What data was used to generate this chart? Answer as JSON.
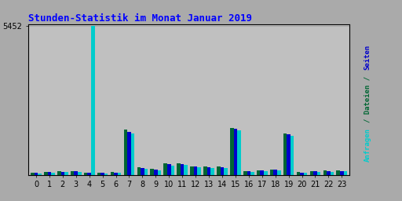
{
  "title": "Stunden-Statistik im Monat Januar 2019",
  "ymax": 5452,
  "ytick_label": "5452",
  "hours": [
    0,
    1,
    2,
    3,
    4,
    5,
    6,
    7,
    8,
    9,
    10,
    11,
    12,
    13,
    14,
    15,
    16,
    17,
    18,
    19,
    20,
    21,
    22,
    23
  ],
  "seiten": [
    80,
    100,
    120,
    130,
    80,
    70,
    90,
    1580,
    260,
    200,
    380,
    400,
    300,
    290,
    280,
    1680,
    130,
    160,
    190,
    1480,
    90,
    130,
    140,
    140
  ],
  "dateien": [
    90,
    110,
    130,
    140,
    85,
    80,
    100,
    1650,
    280,
    220,
    410,
    430,
    320,
    310,
    300,
    1720,
    140,
    170,
    200,
    1520,
    100,
    140,
    150,
    150
  ],
  "anfragen": [
    60,
    80,
    100,
    110,
    5452,
    55,
    70,
    1520,
    230,
    170,
    340,
    360,
    270,
    260,
    250,
    1620,
    110,
    140,
    170,
    1440,
    75,
    110,
    120,
    125
  ],
  "color_seiten": "#0000cc",
  "color_dateien": "#006633",
  "color_anfragen": "#00cccc",
  "bg_color": "#aaaaaa",
  "plot_bg_color": "#c0c0c0",
  "title_color": "#0000ff",
  "grid_color": "#aaaaaa",
  "border_color": "#000000"
}
